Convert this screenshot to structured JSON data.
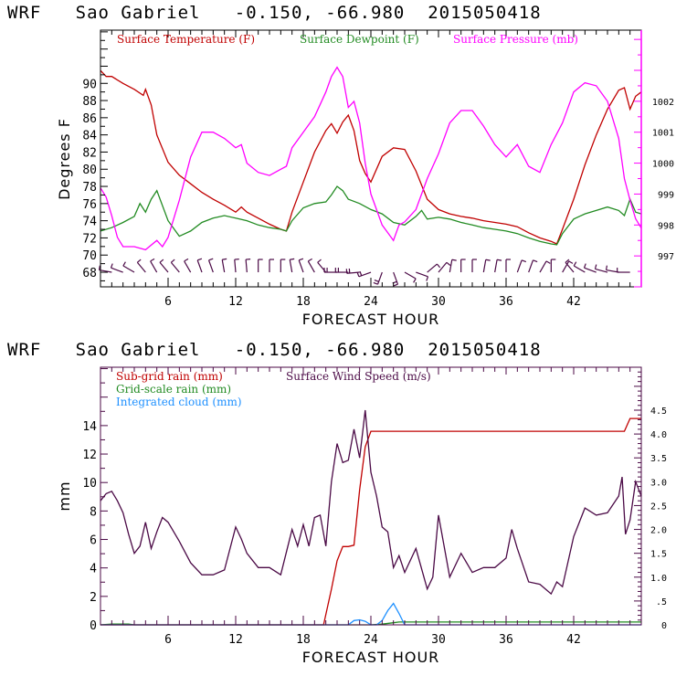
{
  "chart_data": [
    {
      "type": "line",
      "title": "WRF   Sao Gabriel   -0.150, -66.980  2015050418",
      "xlabel": "FORECAST HOUR",
      "ylabel": "Degrees F",
      "y2label": "",
      "xlim": [
        0,
        48
      ],
      "ylim": [
        66.3,
        96.2
      ],
      "y2lim": [
        996.0,
        1004.3
      ],
      "xticks": [
        6,
        12,
        18,
        24,
        30,
        36,
        42
      ],
      "xtick_labels": [
        "6",
        "12",
        "18",
        "24",
        "30",
        "36",
        "42"
      ],
      "yticks": [
        68,
        70,
        72,
        74,
        76,
        78,
        80,
        82,
        84,
        86,
        88,
        90
      ],
      "ytick_labels": [
        "68",
        "70",
        "72",
        "74",
        "76",
        "78",
        "80",
        "82",
        "84",
        "86",
        "88",
        "90"
      ],
      "y2ticks": [
        997,
        998,
        999,
        1000,
        1001,
        1002
      ],
      "y2tick_labels": [
        "997",
        "998",
        "999",
        "1000",
        "1001",
        "1002"
      ],
      "legend_position": "top",
      "grid": false,
      "series": [
        {
          "name": "Surface Temperature (F)",
          "color": "#c00000",
          "axis": "left",
          "x": [
            0,
            0.5,
            1,
            2,
            3,
            3.8,
            4,
            4.5,
            5,
            6,
            7,
            8,
            9,
            10,
            11,
            12,
            12.5,
            13,
            14,
            15,
            16,
            16.5,
            17,
            18,
            19,
            20,
            20.5,
            21,
            21.5,
            22,
            22.5,
            23,
            23.5,
            24,
            25,
            26,
            27,
            28,
            29,
            30,
            31,
            32,
            33,
            34,
            35,
            36,
            37,
            38,
            39,
            40,
            40.5,
            41,
            42,
            43,
            44,
            45,
            46,
            46.5,
            47,
            47.5,
            48
          ],
          "values": [
            91.5,
            90.8,
            90.8,
            90.0,
            89.3,
            88.6,
            89.3,
            87.5,
            84.0,
            80.8,
            79.3,
            78.3,
            77.3,
            76.5,
            75.8,
            75.0,
            75.6,
            75.0,
            74.3,
            73.6,
            73.0,
            72.8,
            75.0,
            78.5,
            82.0,
            84.5,
            85.3,
            84.2,
            85.5,
            86.3,
            84.5,
            81.0,
            79.5,
            78.5,
            81.5,
            82.5,
            82.3,
            79.8,
            76.5,
            75.3,
            74.8,
            74.5,
            74.3,
            74.0,
            73.8,
            73.6,
            73.3,
            72.6,
            72.0,
            71.6,
            71.3,
            73.0,
            76.5,
            80.5,
            84.0,
            87.0,
            89.2,
            89.5,
            87.0,
            88.5,
            89.0
          ]
        },
        {
          "name": "Surface Dewpoint (F)",
          "color": "#228b22",
          "axis": "left",
          "x": [
            0,
            1,
            2,
            3,
            3.5,
            4,
            4.5,
            5,
            6,
            7,
            8,
            9,
            10,
            11,
            12,
            13,
            14,
            15,
            16,
            16.5,
            17,
            18,
            19,
            20,
            20.5,
            21,
            21.5,
            22,
            23,
            24,
            25,
            26,
            27,
            28,
            28.5,
            29,
            30,
            31,
            32,
            33,
            34,
            35,
            36,
            37,
            38,
            39,
            40,
            40.5,
            41,
            42,
            43,
            44,
            45,
            46,
            46.5,
            47,
            47.5,
            48
          ],
          "values": [
            72.8,
            73.2,
            73.8,
            74.5,
            76.0,
            75.0,
            76.5,
            77.5,
            74.0,
            72.2,
            72.8,
            73.8,
            74.3,
            74.6,
            74.3,
            74.0,
            73.5,
            73.2,
            73.0,
            72.8,
            74.0,
            75.5,
            76.0,
            76.2,
            77.0,
            78.0,
            77.5,
            76.5,
            76.0,
            75.3,
            74.8,
            73.8,
            73.5,
            74.5,
            75.2,
            74.2,
            74.4,
            74.2,
            73.8,
            73.5,
            73.2,
            73.0,
            72.8,
            72.5,
            72.0,
            71.6,
            71.3,
            71.2,
            72.5,
            74.2,
            74.8,
            75.2,
            75.6,
            75.2,
            74.6,
            76.5,
            75.0,
            74.8
          ]
        },
        {
          "name": "Surface Pressure (mb)",
          "color": "#ff00ff",
          "axis": "right",
          "x": [
            0,
            0.5,
            1,
            1.5,
            2,
            3,
            4,
            5,
            5.5,
            6,
            7,
            8,
            9,
            10,
            11,
            12,
            12.5,
            13,
            14,
            15,
            16,
            16.5,
            17,
            18,
            19,
            19.5,
            20,
            20.5,
            21,
            21.5,
            22,
            22.5,
            23,
            23.5,
            24,
            24.5,
            25,
            26,
            26.5,
            27,
            28,
            29,
            30,
            31,
            32,
            33,
            34,
            35,
            36,
            37,
            38,
            39,
            40,
            41,
            42,
            43,
            44,
            45,
            46,
            46.5,
            47,
            47.5,
            48
          ],
          "values": [
            999.2,
            998.9,
            998.3,
            997.6,
            997.3,
            997.3,
            997.2,
            997.5,
            997.3,
            997.6,
            998.8,
            1000.2,
            1001.0,
            1001.0,
            1000.8,
            1000.5,
            1000.6,
            1000.0,
            999.7,
            999.6,
            999.8,
            999.9,
            1000.5,
            1001.0,
            1001.5,
            1001.9,
            1002.3,
            1002.8,
            1003.1,
            1002.8,
            1001.8,
            1002.0,
            1001.3,
            1000.0,
            999.0,
            998.5,
            998.0,
            997.5,
            998.0,
            998.1,
            998.5,
            999.5,
            1000.3,
            1001.3,
            1001.7,
            1001.7,
            1001.2,
            1000.6,
            1000.2,
            1000.6,
            999.9,
            999.7,
            1000.6,
            1001.3,
            1002.3,
            1002.6,
            1002.5,
            1002.0,
            1000.8,
            999.5,
            998.8,
            998.2,
            997.9
          ]
        }
      ],
      "wind_barbs": {
        "color": "#4b0a46",
        "level_value": 68,
        "hours": [
          1,
          2,
          3,
          4,
          5,
          6,
          7,
          8,
          9,
          10,
          11,
          12,
          13,
          14,
          15,
          16,
          17,
          18,
          19,
          20,
          21,
          22,
          23,
          24,
          25,
          26,
          27,
          28,
          29,
          30,
          31,
          32,
          33,
          34,
          35,
          36,
          37,
          38,
          39,
          40,
          41,
          42,
          43,
          44,
          45,
          46,
          47
        ],
        "direction_deg": [
          280,
          290,
          300,
          320,
          330,
          320,
          320,
          330,
          340,
          340,
          350,
          355,
          355,
          360,
          360,
          360,
          350,
          340,
          330,
          320,
          270,
          270,
          265,
          250,
          200,
          160,
          120,
          110,
          50,
          40,
          10,
          360,
          360,
          10,
          10,
          360,
          20,
          20,
          30,
          360,
          30,
          320,
          300,
          290,
          285,
          280,
          270
        ],
        "speed_ms": [
          2,
          2,
          2,
          2,
          2,
          2,
          2,
          2,
          2,
          2,
          2,
          2,
          2,
          2,
          2,
          2,
          2,
          2,
          2,
          2,
          3,
          3,
          3,
          4,
          4,
          4,
          2,
          2,
          2,
          2,
          2,
          2,
          2,
          2,
          2,
          2,
          2,
          2,
          2,
          2,
          2,
          2,
          2,
          2,
          2,
          2,
          2
        ]
      }
    },
    {
      "type": "line",
      "title": "WRF   Sao Gabriel   -0.150, -66.980  2015050418",
      "xlabel": "FORECAST HOUR",
      "ylabel": "mm",
      "xlim": [
        0,
        48
      ],
      "ylim": [
        0,
        18.1
      ],
      "y2lim": [
        0,
        5.4
      ],
      "xticks": [
        6,
        12,
        18,
        24,
        30,
        36,
        42
      ],
      "xtick_labels": [
        "6",
        "12",
        "18",
        "24",
        "30",
        "36",
        "42"
      ],
      "yticks": [
        0,
        2,
        4,
        6,
        8,
        10,
        12,
        14
      ],
      "ytick_labels": [
        "0",
        "2",
        "4",
        "6",
        "8",
        "10",
        "12",
        "14"
      ],
      "y2ticks": [
        0,
        0.5,
        1.0,
        1.5,
        2.0,
        2.5,
        3.0,
        3.5,
        4.0,
        4.5
      ],
      "y2tick_labels": [
        "0",
        ".5",
        "1.0",
        "1.5",
        "2.0",
        "2.5",
        "3.0",
        "3.5",
        "4.0",
        "4.5"
      ],
      "legend_position": "top-left",
      "grid": false,
      "series": [
        {
          "name": "Sub-grid rain (mm)",
          "color": "#c00000",
          "axis": "left",
          "x": [
            0,
            19.8,
            20.5,
            21,
            21.5,
            22,
            22.5,
            23,
            23.5,
            24,
            46.5,
            47,
            48
          ],
          "values": [
            0,
            0,
            2.5,
            4.5,
            5.5,
            5.5,
            5.6,
            9.5,
            12.5,
            13.6,
            13.6,
            14.5,
            14.5
          ]
        },
        {
          "name": "Grid-scale rain (mm)",
          "color": "#228b22",
          "axis": "left",
          "x": [
            0,
            1,
            2,
            2.5,
            3,
            24,
            25,
            26,
            26.5,
            48
          ],
          "values": [
            0,
            0.05,
            0.05,
            0.05,
            0,
            0,
            0.05,
            0.15,
            0.2,
            0.2
          ]
        },
        {
          "name": "Integrated cloud (mm)",
          "color": "#1e90ff",
          "axis": "left",
          "x": [
            0,
            22,
            22.5,
            23,
            23.5,
            24,
            24.5,
            25,
            25.5,
            26,
            26.5,
            27,
            28,
            48
          ],
          "values": [
            0,
            0,
            0.3,
            0.35,
            0.25,
            0,
            0,
            0.3,
            1.0,
            1.5,
            0.8,
            0,
            0,
            0
          ]
        },
        {
          "name": "Surface Wind Speed (m/s)",
          "color": "#4b0a46",
          "axis": "right",
          "x": [
            0,
            0.5,
            1,
            1.5,
            2,
            2.5,
            3,
            3.5,
            4,
            4.5,
            5,
            5.5,
            6,
            7,
            8,
            9,
            10,
            11,
            12,
            12.5,
            13,
            14,
            15,
            16,
            17,
            17.5,
            18,
            18.5,
            19,
            19.5,
            20,
            20.5,
            21,
            21.5,
            22,
            22.5,
            23,
            23.5,
            24,
            24.5,
            25,
            25.5,
            26,
            26.5,
            27,
            28,
            29,
            29.5,
            30,
            31,
            32,
            33,
            34,
            35,
            36,
            36.5,
            37,
            38,
            39,
            40,
            40.5,
            41,
            42,
            43,
            44,
            45,
            46,
            46.3,
            46.6,
            47,
            47.5,
            48
          ],
          "values": [
            2.6,
            2.75,
            2.8,
            2.6,
            2.35,
            1.9,
            1.5,
            1.65,
            2.15,
            1.6,
            1.95,
            2.25,
            2.15,
            1.75,
            1.3,
            1.05,
            1.05,
            1.15,
            2.05,
            1.8,
            1.5,
            1.2,
            1.2,
            1.05,
            2.0,
            1.65,
            2.1,
            1.65,
            2.25,
            2.3,
            1.65,
            3.0,
            3.8,
            3.4,
            3.45,
            4.1,
            3.5,
            4.5,
            3.2,
            2.7,
            2.05,
            1.95,
            1.2,
            1.45,
            1.1,
            1.6,
            0.75,
            1.0,
            2.3,
            1.0,
            1.5,
            1.1,
            1.2,
            1.2,
            1.4,
            2.0,
            1.6,
            0.9,
            0.85,
            0.65,
            0.9,
            0.8,
            1.85,
            2.45,
            2.3,
            2.35,
            2.7,
            3.1,
            1.9,
            2.2,
            3.0,
            2.7
          ]
        }
      ]
    }
  ]
}
